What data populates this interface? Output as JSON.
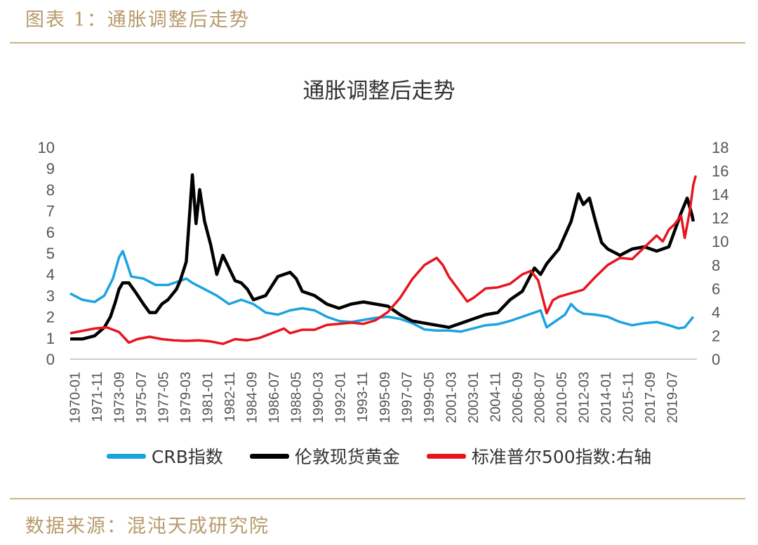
{
  "header": {
    "figure_title": "图表 1：通胀调整后走势"
  },
  "footer": {
    "source": "数据来源：混沌天成研究院"
  },
  "chart_data": {
    "type": "line",
    "title": "通胀调整后走势",
    "x_tick_labels": [
      "1970-01",
      "1971-11",
      "1973-09",
      "1975-07",
      "1977-05",
      "1979-03",
      "1981-01",
      "1982-11",
      "1984-09",
      "1986-07",
      "1988-05",
      "1990-03",
      "1992-01",
      "1993-11",
      "1995-09",
      "1997-07",
      "1999-05",
      "2001-03",
      "2003-01",
      "2004-11",
      "2006-09",
      "2008-07",
      "2010-05",
      "2012-03",
      "2014-01",
      "2015-11",
      "2017-09",
      "2019-07"
    ],
    "x_range": [
      1970.0,
      2021.3
    ],
    "y_left": {
      "min": 0,
      "max": 10,
      "ticks": [
        "0",
        "1",
        "2",
        "3",
        "4",
        "5",
        "6",
        "7",
        "8",
        "9",
        "10"
      ]
    },
    "y_right": {
      "min": 0,
      "max": 18,
      "ticks": [
        "0",
        "2",
        "4",
        "6",
        "8",
        "10",
        "12",
        "14",
        "16",
        "18"
      ]
    },
    "grid": false,
    "legend_position": "bottom",
    "series": [
      {
        "name": "CRB指数",
        "axis": "left",
        "color": "#1ba3e0",
        "points": [
          [
            1970.0,
            3.1
          ],
          [
            1971.0,
            2.8
          ],
          [
            1972.0,
            2.7
          ],
          [
            1972.8,
            3.0
          ],
          [
            1973.5,
            3.8
          ],
          [
            1974.0,
            4.8
          ],
          [
            1974.3,
            5.1
          ],
          [
            1974.6,
            4.6
          ],
          [
            1975.0,
            3.9
          ],
          [
            1976.0,
            3.8
          ],
          [
            1977.0,
            3.5
          ],
          [
            1978.0,
            3.5
          ],
          [
            1979.0,
            3.7
          ],
          [
            1979.5,
            3.8
          ],
          [
            1980.0,
            3.6
          ],
          [
            1981.0,
            3.3
          ],
          [
            1982.0,
            3.0
          ],
          [
            1983.0,
            2.6
          ],
          [
            1984.0,
            2.8
          ],
          [
            1985.0,
            2.6
          ],
          [
            1986.0,
            2.2
          ],
          [
            1987.0,
            2.1
          ],
          [
            1988.0,
            2.3
          ],
          [
            1989.0,
            2.4
          ],
          [
            1990.0,
            2.3
          ],
          [
            1991.0,
            2.0
          ],
          [
            1992.0,
            1.8
          ],
          [
            1993.0,
            1.75
          ],
          [
            1994.0,
            1.85
          ],
          [
            1995.0,
            1.95
          ],
          [
            1996.0,
            2.0
          ],
          [
            1997.0,
            1.9
          ],
          [
            1998.0,
            1.7
          ],
          [
            1999.0,
            1.4
          ],
          [
            2000.0,
            1.35
          ],
          [
            2001.0,
            1.35
          ],
          [
            2002.0,
            1.3
          ],
          [
            2003.0,
            1.45
          ],
          [
            2004.0,
            1.6
          ],
          [
            2005.0,
            1.65
          ],
          [
            2006.0,
            1.8
          ],
          [
            2007.0,
            2.0
          ],
          [
            2008.0,
            2.2
          ],
          [
            2008.5,
            2.3
          ],
          [
            2009.0,
            1.5
          ],
          [
            2010.0,
            1.9
          ],
          [
            2010.5,
            2.1
          ],
          [
            2011.0,
            2.6
          ],
          [
            2011.5,
            2.3
          ],
          [
            2012.0,
            2.15
          ],
          [
            2013.0,
            2.1
          ],
          [
            2014.0,
            2.0
          ],
          [
            2015.0,
            1.75
          ],
          [
            2016.0,
            1.6
          ],
          [
            2017.0,
            1.7
          ],
          [
            2018.0,
            1.75
          ],
          [
            2019.0,
            1.6
          ],
          [
            2019.8,
            1.45
          ],
          [
            2020.3,
            1.5
          ],
          [
            2021.0,
            2.0
          ]
        ]
      },
      {
        "name": "伦敦现货黄金",
        "axis": "left",
        "color": "#000000",
        "points": [
          [
            1970.0,
            0.95
          ],
          [
            1971.0,
            0.95
          ],
          [
            1972.0,
            1.1
          ],
          [
            1972.8,
            1.5
          ],
          [
            1973.3,
            2.0
          ],
          [
            1973.7,
            2.7
          ],
          [
            1974.0,
            3.3
          ],
          [
            1974.3,
            3.6
          ],
          [
            1974.8,
            3.6
          ],
          [
            1975.3,
            3.2
          ],
          [
            1976.0,
            2.6
          ],
          [
            1976.5,
            2.2
          ],
          [
            1977.0,
            2.2
          ],
          [
            1977.5,
            2.6
          ],
          [
            1978.0,
            2.8
          ],
          [
            1978.7,
            3.3
          ],
          [
            1979.0,
            3.7
          ],
          [
            1979.5,
            4.6
          ],
          [
            1980.0,
            8.7
          ],
          [
            1980.3,
            6.4
          ],
          [
            1980.6,
            8.0
          ],
          [
            1981.0,
            6.5
          ],
          [
            1981.5,
            5.4
          ],
          [
            1982.0,
            4.0
          ],
          [
            1982.5,
            4.9
          ],
          [
            1983.0,
            4.3
          ],
          [
            1983.5,
            3.7
          ],
          [
            1984.0,
            3.6
          ],
          [
            1984.5,
            3.3
          ],
          [
            1985.0,
            2.8
          ],
          [
            1986.0,
            3.0
          ],
          [
            1987.0,
            3.9
          ],
          [
            1988.0,
            4.1
          ],
          [
            1988.5,
            3.8
          ],
          [
            1989.0,
            3.2
          ],
          [
            1990.0,
            3.0
          ],
          [
            1991.0,
            2.6
          ],
          [
            1992.0,
            2.4
          ],
          [
            1993.0,
            2.6
          ],
          [
            1994.0,
            2.7
          ],
          [
            1995.0,
            2.6
          ],
          [
            1996.0,
            2.5
          ],
          [
            1997.0,
            2.1
          ],
          [
            1998.0,
            1.8
          ],
          [
            1999.0,
            1.7
          ],
          [
            2000.0,
            1.6
          ],
          [
            2001.0,
            1.5
          ],
          [
            2002.0,
            1.7
          ],
          [
            2003.0,
            1.9
          ],
          [
            2004.0,
            2.1
          ],
          [
            2005.0,
            2.2
          ],
          [
            2006.0,
            2.8
          ],
          [
            2007.0,
            3.2
          ],
          [
            2008.0,
            4.3
          ],
          [
            2008.5,
            4.0
          ],
          [
            2009.0,
            4.5
          ],
          [
            2010.0,
            5.2
          ],
          [
            2011.0,
            6.5
          ],
          [
            2011.6,
            7.8
          ],
          [
            2012.0,
            7.3
          ],
          [
            2012.5,
            7.6
          ],
          [
            2013.0,
            6.5
          ],
          [
            2013.5,
            5.5
          ],
          [
            2014.0,
            5.2
          ],
          [
            2015.0,
            4.9
          ],
          [
            2016.0,
            5.2
          ],
          [
            2017.0,
            5.3
          ],
          [
            2018.0,
            5.1
          ],
          [
            2019.0,
            5.3
          ],
          [
            2019.5,
            6.1
          ],
          [
            2020.0,
            6.9
          ],
          [
            2020.5,
            7.6
          ],
          [
            2020.9,
            6.8
          ],
          [
            2021.0,
            6.5
          ]
        ]
      },
      {
        "name": "标准普尔500指数:右轴",
        "axis": "right",
        "color": "#e8141e",
        "points": [
          [
            1970.0,
            2.2
          ],
          [
            1971.0,
            2.4
          ],
          [
            1972.0,
            2.6
          ],
          [
            1973.0,
            2.7
          ],
          [
            1974.0,
            2.3
          ],
          [
            1974.8,
            1.4
          ],
          [
            1975.5,
            1.7
          ],
          [
            1976.5,
            1.9
          ],
          [
            1977.5,
            1.7
          ],
          [
            1978.5,
            1.6
          ],
          [
            1979.5,
            1.55
          ],
          [
            1980.5,
            1.6
          ],
          [
            1981.5,
            1.5
          ],
          [
            1982.5,
            1.3
          ],
          [
            1983.5,
            1.7
          ],
          [
            1984.5,
            1.6
          ],
          [
            1985.5,
            1.8
          ],
          [
            1986.5,
            2.2
          ],
          [
            1987.5,
            2.6
          ],
          [
            1988.0,
            2.2
          ],
          [
            1989.0,
            2.5
          ],
          [
            1990.0,
            2.5
          ],
          [
            1991.0,
            2.9
          ],
          [
            1992.0,
            3.0
          ],
          [
            1993.0,
            3.1
          ],
          [
            1994.0,
            3.0
          ],
          [
            1995.0,
            3.3
          ],
          [
            1996.0,
            4.0
          ],
          [
            1997.0,
            5.2
          ],
          [
            1998.0,
            6.8
          ],
          [
            1999.0,
            8.0
          ],
          [
            2000.0,
            8.6
          ],
          [
            2000.5,
            8.0
          ],
          [
            2001.0,
            7.0
          ],
          [
            2002.0,
            5.6
          ],
          [
            2002.5,
            4.9
          ],
          [
            2003.0,
            5.2
          ],
          [
            2004.0,
            6.0
          ],
          [
            2005.0,
            6.1
          ],
          [
            2006.0,
            6.4
          ],
          [
            2007.0,
            7.2
          ],
          [
            2007.7,
            7.5
          ],
          [
            2008.3,
            6.7
          ],
          [
            2009.0,
            3.9
          ],
          [
            2009.5,
            5.0
          ],
          [
            2010.0,
            5.3
          ],
          [
            2011.0,
            5.6
          ],
          [
            2012.0,
            5.9
          ],
          [
            2013.0,
            7.0
          ],
          [
            2014.0,
            8.0
          ],
          [
            2015.0,
            8.6
          ],
          [
            2016.0,
            8.5
          ],
          [
            2017.0,
            9.5
          ],
          [
            2018.0,
            10.5
          ],
          [
            2018.5,
            10.0
          ],
          [
            2019.0,
            11.0
          ],
          [
            2019.5,
            11.5
          ],
          [
            2020.0,
            12.2
          ],
          [
            2020.3,
            10.3
          ],
          [
            2020.7,
            12.5
          ],
          [
            2021.0,
            14.8
          ],
          [
            2021.2,
            15.6
          ]
        ]
      }
    ]
  }
}
